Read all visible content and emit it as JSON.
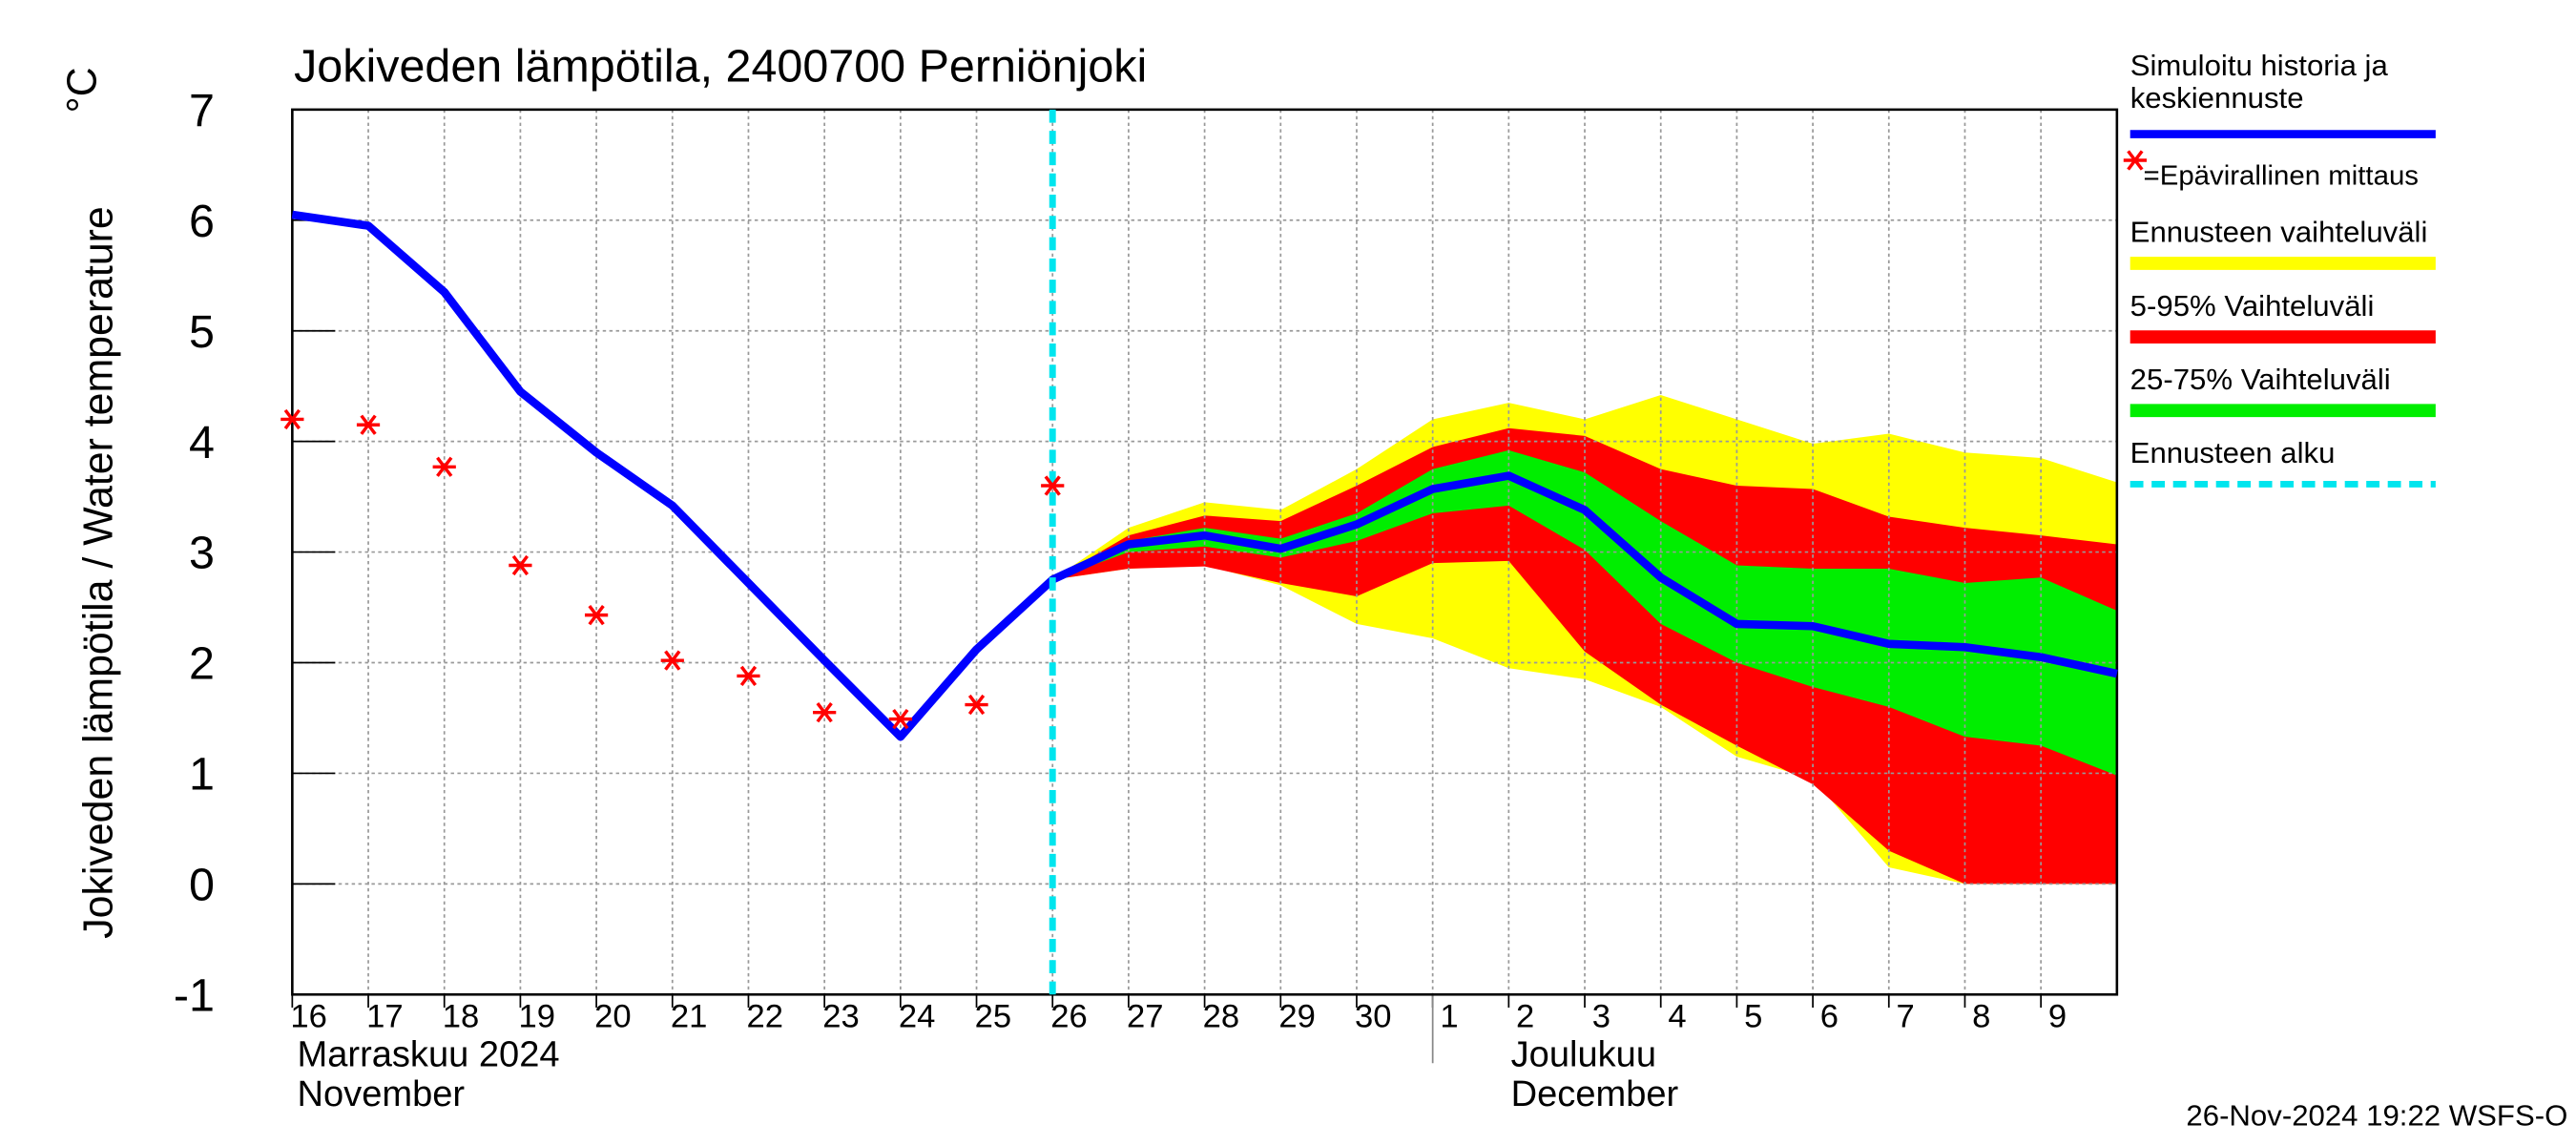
{
  "chart_data": {
    "type": "band-line",
    "title": "Jokiveden lämpötila, 2400700 Perniönjoki",
    "y_label": "Jokiveden lämpötila / Water temperature",
    "y_unit": "°C",
    "month_labels": [
      "Marraskuu 2024",
      "November",
      "Joulukuu",
      "December"
    ],
    "footer": "26-Nov-2024 19:22 WSFS-O",
    "xlim": [
      0,
      24
    ],
    "xticks": [
      {
        "value": 0,
        "label": "16"
      },
      {
        "value": 1,
        "label": "17"
      },
      {
        "value": 2,
        "label": "18"
      },
      {
        "value": 3,
        "label": "19"
      },
      {
        "value": 4,
        "label": "20"
      },
      {
        "value": 5,
        "label": "21"
      },
      {
        "value": 6,
        "label": "22"
      },
      {
        "value": 7,
        "label": "23"
      },
      {
        "value": 8,
        "label": "24"
      },
      {
        "value": 9,
        "label": "25"
      },
      {
        "value": 10,
        "label": "26"
      },
      {
        "value": 11,
        "label": "27"
      },
      {
        "value": 12,
        "label": "28"
      },
      {
        "value": 13,
        "label": "29"
      },
      {
        "value": 14,
        "label": "30"
      },
      {
        "value": 15,
        "label": "1"
      },
      {
        "value": 16,
        "label": "2"
      },
      {
        "value": 17,
        "label": "3"
      },
      {
        "value": 18,
        "label": "4"
      },
      {
        "value": 19,
        "label": "5"
      },
      {
        "value": 20,
        "label": "6"
      },
      {
        "value": 21,
        "label": "7"
      },
      {
        "value": 22,
        "label": "8"
      },
      {
        "value": 23,
        "label": "9"
      }
    ],
    "ylim": [
      -1,
      7
    ],
    "yticks": [
      -1,
      0,
      1,
      2,
      3,
      4,
      5,
      6,
      7
    ],
    "grid": true,
    "x": [
      0,
      1,
      2,
      3,
      4,
      5,
      6,
      7,
      8,
      9,
      10,
      11,
      12,
      13,
      14,
      15,
      16,
      17,
      18,
      19,
      20,
      21,
      22,
      23,
      24
    ],
    "forecast_start": 10,
    "forecast_start_label": "Ennusteen alku",
    "forecast_start_color": "#00e5ee",
    "bands": [
      {
        "name": "Ennusteen vaihteluväli",
        "color": "#ffff00",
        "upper": [
          null,
          null,
          null,
          null,
          null,
          null,
          null,
          null,
          null,
          null,
          2.75,
          3.22,
          3.45,
          3.38,
          3.75,
          4.2,
          4.35,
          4.2,
          4.42,
          4.2,
          3.98,
          4.07,
          3.9,
          3.85,
          3.63
        ],
        "lower": [
          null,
          null,
          null,
          null,
          null,
          null,
          null,
          null,
          null,
          null,
          2.75,
          2.85,
          2.88,
          2.7,
          2.35,
          2.22,
          1.95,
          1.85,
          1.6,
          1.15,
          0.95,
          0.15,
          0,
          0,
          0
        ]
      },
      {
        "name": "5-95% Vaihteluväli",
        "color": "#ff0000",
        "upper": [
          null,
          null,
          null,
          null,
          null,
          null,
          null,
          null,
          null,
          null,
          2.75,
          3.15,
          3.33,
          3.28,
          3.6,
          3.95,
          4.12,
          4.05,
          3.75,
          3.6,
          3.57,
          3.32,
          3.22,
          3.15,
          3.07
        ],
        "lower": [
          null,
          null,
          null,
          null,
          null,
          null,
          null,
          null,
          null,
          null,
          2.75,
          2.85,
          2.87,
          2.72,
          2.6,
          2.9,
          2.92,
          2.1,
          1.62,
          1.25,
          0.9,
          0.3,
          0,
          0,
          0
        ]
      },
      {
        "name": "25-75% Vaihteluväli",
        "color": "#00ee00",
        "upper": [
          null,
          null,
          null,
          null,
          null,
          null,
          null,
          null,
          null,
          null,
          2.75,
          3.1,
          3.22,
          3.12,
          3.35,
          3.75,
          3.92,
          3.72,
          3.28,
          2.88,
          2.85,
          2.85,
          2.72,
          2.77,
          2.47
        ],
        "lower": [
          null,
          null,
          null,
          null,
          null,
          null,
          null,
          null,
          null,
          null,
          2.75,
          3.0,
          3.05,
          2.95,
          3.1,
          3.35,
          3.42,
          3.02,
          2.35,
          2.0,
          1.78,
          1.6,
          1.33,
          1.25,
          0.98
        ]
      }
    ],
    "series": [
      {
        "name": "Simuloitu historia ja keskiennuste",
        "color": "#0000ff",
        "values": [
          6.05,
          5.95,
          5.35,
          4.45,
          3.9,
          3.42,
          2.72,
          2.02,
          1.33,
          2.12,
          2.75,
          3.07,
          3.15,
          3.03,
          3.25,
          3.57,
          3.69,
          3.38,
          2.77,
          2.35,
          2.33,
          2.17,
          2.14,
          2.05,
          1.9
        ]
      },
      {
        "name": "=Epävirallinen mittaus",
        "color": "#ff0000",
        "values": [
          4.2,
          4.15,
          3.77,
          2.88,
          2.43,
          2.02,
          1.88,
          1.55,
          1.49,
          1.62,
          3.6,
          null,
          null,
          null,
          null,
          null,
          null,
          null,
          null,
          null,
          null,
          null,
          null,
          null,
          null
        ]
      }
    ]
  }
}
